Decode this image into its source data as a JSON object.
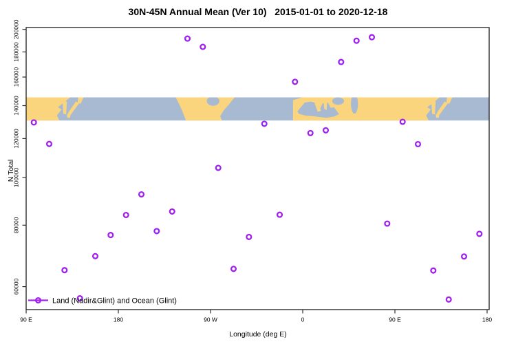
{
  "chart_data": {
    "type": "scatter",
    "title": "30N-45N Annual Mean (Ver 10)   2015-01-01 to 2020-12-18",
    "xlabel": "Longitude (deg E)",
    "ylabel": "N Total",
    "grid": false,
    "x_axis": {
      "range": [
        90,
        542.5
      ],
      "unit": "deg E (wrapping eastward)",
      "ticks": [
        {
          "value": 90,
          "label": "90 E"
        },
        {
          "value": 180,
          "label": "180"
        },
        {
          "value": 270,
          "label": "90 W"
        },
        {
          "value": 360,
          "label": "0"
        },
        {
          "value": 450,
          "label": "90 E"
        },
        {
          "value": 540,
          "label": "180"
        }
      ]
    },
    "y_axis": {
      "scale": "log",
      "range": [
        53900,
        201700
      ],
      "ticks": [
        60000,
        80000,
        100000,
        120000,
        140000,
        160000,
        180000,
        200000
      ]
    },
    "legend": {
      "label": "Land (Nadir&Glint) and Ocean (Glint)",
      "marker": "open-circle-on-line",
      "color": "#A020F0",
      "position": "bottom-left"
    },
    "map_band": {
      "depicts": "world coastline strip for latitudes 30N-45N",
      "top_value": 145500,
      "bottom_value": 130500,
      "land_color": "#FBD57E",
      "ocean_color": "#A8BAD2"
    },
    "series": [
      {
        "name": "Land (Nadir&Glint) and Ocean (Glint)",
        "marker": "open-circle",
        "color": "#A020F0",
        "points": [
          [
            97.5,
            129400
          ],
          [
            112.5,
            117000
          ],
          [
            127.5,
            64800
          ],
          [
            142.5,
            56800
          ],
          [
            157.5,
            69200
          ],
          [
            172.5,
            76400
          ],
          [
            187.5,
            83900
          ],
          [
            202.5,
            92400
          ],
          [
            217.5,
            77800
          ],
          [
            232.5,
            85300
          ],
          [
            247.5,
            191600
          ],
          [
            262.5,
            184300
          ],
          [
            277.5,
            104600
          ],
          [
            292.5,
            65200
          ],
          [
            307.5,
            75700
          ],
          [
            322.5,
            128600
          ],
          [
            337.5,
            84000
          ],
          [
            352.5,
            156500
          ],
          [
            367.5,
            123100
          ],
          [
            382.5,
            124700
          ],
          [
            397.5,
            171700
          ],
          [
            412.5,
            189700
          ],
          [
            427.5,
            192800
          ],
          [
            442.5,
            80600
          ],
          [
            457.5,
            129800
          ],
          [
            472.5,
            116900
          ],
          [
            487.5,
            64700
          ],
          [
            502.5,
            56500
          ],
          [
            517.5,
            69100
          ],
          [
            532.5,
            76800
          ]
        ]
      }
    ]
  }
}
